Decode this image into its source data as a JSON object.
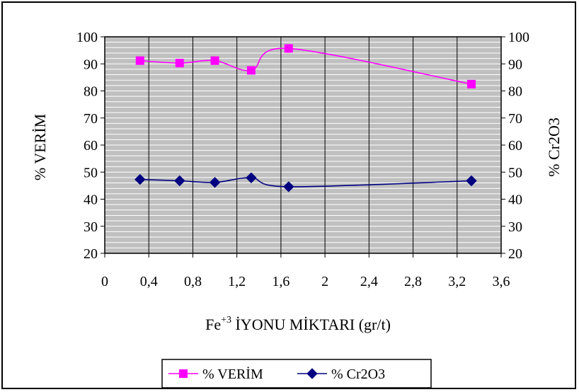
{
  "chart_data": {
    "type": "line",
    "xlabel_base": "Fe",
    "xlabel_sup": "+3",
    "xlabel_rest": " İYONU MİKTARI (gr/t)",
    "ylabel": "% VERİM",
    "y2label": "% Cr2O3",
    "xlim": [
      0,
      3.6
    ],
    "ylim": [
      20,
      100
    ],
    "y2lim": [
      20,
      100
    ],
    "x_ticks": [
      "0",
      "0,4",
      "0,8",
      "1,2",
      "1,6",
      "2",
      "2,4",
      "2,8",
      "3,2",
      "3,6"
    ],
    "y_ticks": [
      "20",
      "30",
      "40",
      "50",
      "60",
      "70",
      "80",
      "90",
      "100"
    ],
    "y2_ticks": [
      "20",
      "30",
      "40",
      "50",
      "60",
      "70",
      "80",
      "90",
      "100"
    ],
    "grid": true,
    "legend_position": "bottom",
    "plot_background": "#c0c0c0",
    "series": [
      {
        "name": "% VERİM",
        "color": "#ff00ff",
        "marker": "square",
        "axis": "left",
        "x": [
          0.32,
          0.68,
          1.0,
          1.33,
          1.67,
          3.33
        ],
        "y": [
          91.2,
          90.3,
          91.2,
          87.6,
          95.7,
          82.5
        ]
      },
      {
        "name": "% Cr2O3",
        "color": "#000080",
        "marker": "diamond",
        "axis": "right",
        "x": [
          0.32,
          0.68,
          1.0,
          1.33,
          1.67,
          3.33
        ],
        "y": [
          47.3,
          46.8,
          46.2,
          47.9,
          44.6,
          46.8
        ]
      }
    ]
  }
}
